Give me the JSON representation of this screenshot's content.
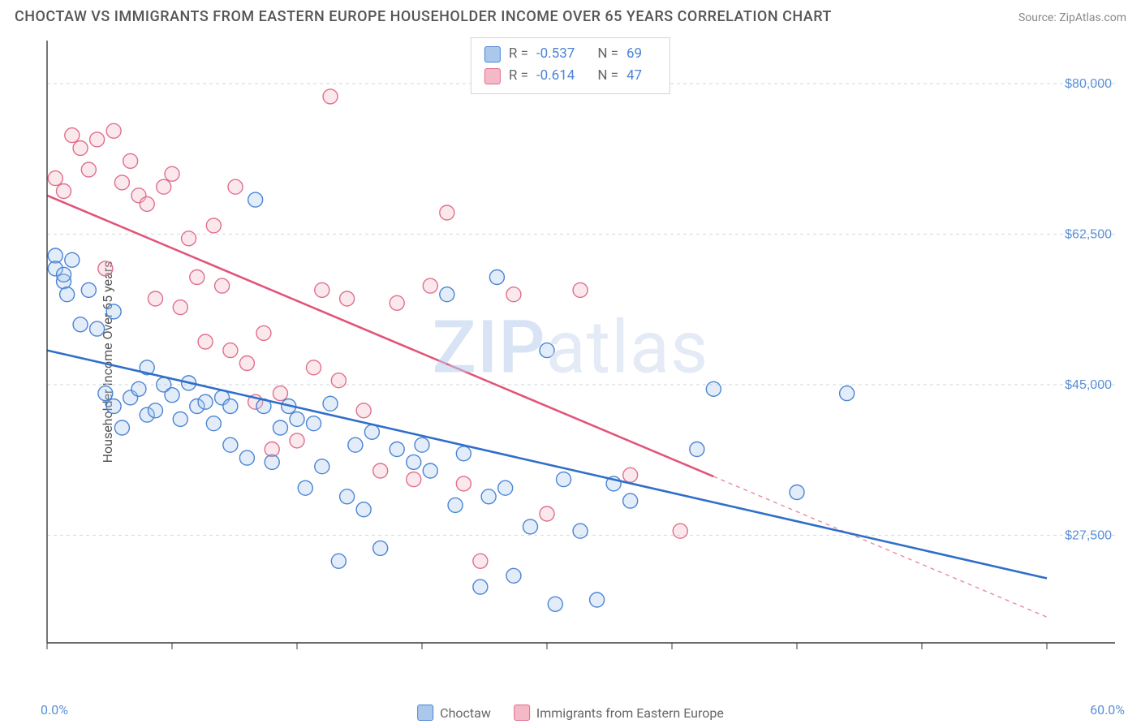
{
  "title": "CHOCTAW VS IMMIGRANTS FROM EASTERN EUROPE HOUSEHOLDER INCOME OVER 65 YEARS CORRELATION CHART",
  "source_label": "Source: ",
  "source_name": "ZipAtlas.com",
  "y_axis_label": "Householder Income Over 65 years",
  "watermark_a": "ZIP",
  "watermark_b": "atlas",
  "chart": {
    "type": "scatter-with-regression",
    "background_color": "#ffffff",
    "grid_color": "#d9dde2",
    "grid_dash": "4 4",
    "axis_color": "#3a3a3a",
    "x_min": 0.0,
    "x_max": 60.0,
    "x_min_label": "0.0%",
    "x_max_label": "60.0%",
    "x_tick_step": 7.5,
    "y_min": 15000,
    "y_max": 85000,
    "y_ticks": [
      27500,
      45000,
      62500,
      80000
    ],
    "y_tick_labels": [
      "$27,500",
      "$45,000",
      "$62,500",
      "$80,000"
    ],
    "y_tick_color": "#5a8fd6",
    "y_tick_fontsize": 16,
    "marker_radius": 9,
    "marker_stroke_width": 1.4,
    "marker_fill_opacity": 0.32,
    "line_width": 2.6,
    "dash_pattern": "5 5"
  },
  "series": {
    "choctaw": {
      "label": "Choctaw",
      "color_stroke": "#4b84d4",
      "color_fill": "#a9c8ec",
      "line_color": "#2f6fc9",
      "R": "-0.537",
      "N": "69",
      "regression": {
        "x1": 0,
        "y1": 49000,
        "x2": 60,
        "y2": 22500,
        "solid_until_x": 60
      },
      "points": [
        [
          0.5,
          60000
        ],
        [
          0.5,
          58500
        ],
        [
          1,
          57000
        ],
        [
          1,
          57800
        ],
        [
          1.2,
          55500
        ],
        [
          1.5,
          59500
        ],
        [
          2,
          52000
        ],
        [
          2.5,
          56000
        ],
        [
          3,
          51500
        ],
        [
          3.5,
          44000
        ],
        [
          4,
          42500
        ],
        [
          4,
          53500
        ],
        [
          4.5,
          40000
        ],
        [
          5,
          43500
        ],
        [
          5.5,
          44500
        ],
        [
          6,
          47000
        ],
        [
          6,
          41500
        ],
        [
          6.5,
          42000
        ],
        [
          7,
          45000
        ],
        [
          7.5,
          43800
        ],
        [
          8,
          41000
        ],
        [
          8.5,
          45200
        ],
        [
          9,
          42500
        ],
        [
          9.5,
          43000
        ],
        [
          10,
          40500
        ],
        [
          10.5,
          43500
        ],
        [
          11,
          42500
        ],
        [
          11,
          38000
        ],
        [
          12,
          36500
        ],
        [
          12.5,
          66500
        ],
        [
          13,
          42500
        ],
        [
          13.5,
          36000
        ],
        [
          14,
          40000
        ],
        [
          14.5,
          42500
        ],
        [
          15,
          41000
        ],
        [
          15.5,
          33000
        ],
        [
          16,
          40500
        ],
        [
          16.5,
          35500
        ],
        [
          17,
          42800
        ],
        [
          17.5,
          24500
        ],
        [
          18,
          32000
        ],
        [
          18.5,
          38000
        ],
        [
          19,
          30500
        ],
        [
          19.5,
          39500
        ],
        [
          20,
          26000
        ],
        [
          21,
          37500
        ],
        [
          22,
          36000
        ],
        [
          22.5,
          38000
        ],
        [
          23,
          35000
        ],
        [
          24,
          55500
        ],
        [
          24.5,
          31000
        ],
        [
          25,
          37000
        ],
        [
          26,
          21500
        ],
        [
          26.5,
          32000
        ],
        [
          27,
          57500
        ],
        [
          27.5,
          33000
        ],
        [
          28,
          22800
        ],
        [
          29,
          28500
        ],
        [
          30,
          49000
        ],
        [
          30.5,
          19500
        ],
        [
          31,
          34000
        ],
        [
          32,
          28000
        ],
        [
          33,
          20000
        ],
        [
          34,
          33500
        ],
        [
          35,
          31500
        ],
        [
          39,
          37500
        ],
        [
          40,
          44500
        ],
        [
          45,
          32500
        ],
        [
          48,
          44000
        ]
      ]
    },
    "eastern_europe": {
      "label": "Immigrants from Eastern Europe",
      "color_stroke": "#e06f8b",
      "color_fill": "#f4b8c7",
      "line_color": "#e15578",
      "R": "-0.614",
      "N": "47",
      "regression": {
        "x1": 0,
        "y1": 67000,
        "x2": 60,
        "y2": 18000,
        "solid_until_x": 40
      },
      "points": [
        [
          0.5,
          69000
        ],
        [
          1,
          67500
        ],
        [
          1.5,
          74000
        ],
        [
          2,
          72500
        ],
        [
          2.5,
          70000
        ],
        [
          3,
          73500
        ],
        [
          3.5,
          58500
        ],
        [
          4,
          74500
        ],
        [
          4.5,
          68500
        ],
        [
          5,
          71000
        ],
        [
          5.5,
          67000
        ],
        [
          6,
          66000
        ],
        [
          6.5,
          55000
        ],
        [
          7,
          68000
        ],
        [
          7.5,
          69500
        ],
        [
          8,
          54000
        ],
        [
          8.5,
          62000
        ],
        [
          9,
          57500
        ],
        [
          9.5,
          50000
        ],
        [
          10,
          63500
        ],
        [
          10.5,
          56500
        ],
        [
          11,
          49000
        ],
        [
          11.3,
          68000
        ],
        [
          12,
          47500
        ],
        [
          12.5,
          43000
        ],
        [
          13,
          51000
        ],
        [
          13.5,
          37500
        ],
        [
          14,
          44000
        ],
        [
          15,
          38500
        ],
        [
          16,
          47000
        ],
        [
          16.5,
          56000
        ],
        [
          17,
          78500
        ],
        [
          17.5,
          45500
        ],
        [
          18,
          55000
        ],
        [
          19,
          42000
        ],
        [
          20,
          35000
        ],
        [
          21,
          54500
        ],
        [
          22,
          34000
        ],
        [
          23,
          56500
        ],
        [
          24,
          65000
        ],
        [
          25,
          33500
        ],
        [
          26,
          24500
        ],
        [
          28,
          55500
        ],
        [
          30,
          30000
        ],
        [
          32,
          56000
        ],
        [
          35,
          34500
        ],
        [
          38,
          28000
        ]
      ]
    }
  },
  "stats_labels": {
    "R": "R =",
    "N": "N ="
  }
}
